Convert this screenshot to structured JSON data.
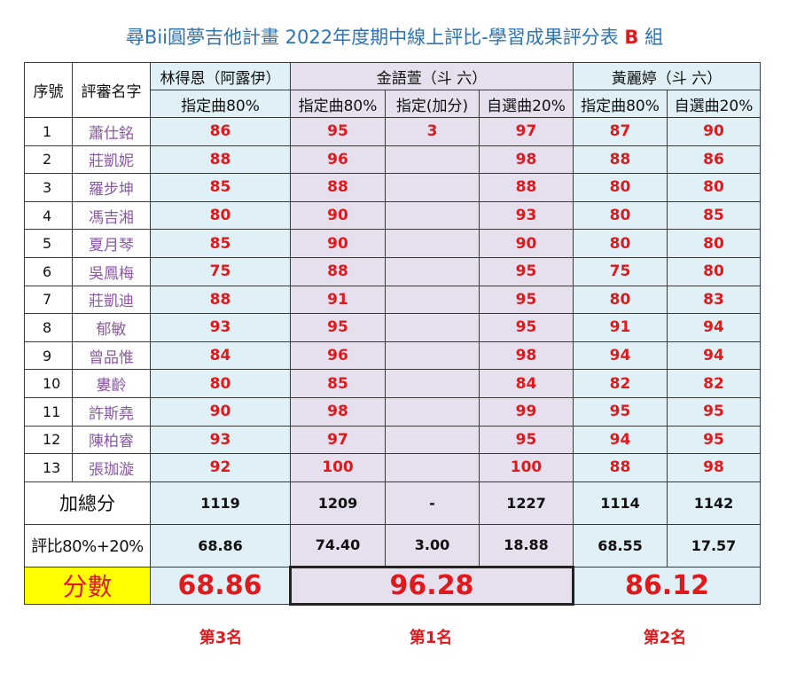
{
  "title": {
    "prefix": "尋Bii圓夢吉他計畫  2022年度期中線上評比-學習成果評分表 ",
    "group": "B",
    "suffix": " 組"
  },
  "headers": {
    "index": "序號",
    "judge": "評審名字",
    "p1_name": "林得恩（阿露伊）",
    "p2_name": "金語萱（斗 六）",
    "p3_name": "黃麗婷（斗 六）",
    "p1_cols": [
      "指定曲80%"
    ],
    "p2_cols": [
      "指定曲80%",
      "指定(加分)",
      "自選曲20%"
    ],
    "p3_cols": [
      "指定曲80%",
      "自選曲20%"
    ]
  },
  "rows": [
    {
      "idx": "1",
      "judge": "蕭仕銘",
      "scores": [
        "86",
        "95",
        "3",
        "97",
        "87",
        "90"
      ]
    },
    {
      "idx": "2",
      "judge": "莊凱妮",
      "scores": [
        "88",
        "96",
        "",
        "98",
        "88",
        "86"
      ]
    },
    {
      "idx": "3",
      "judge": "羅步坤",
      "scores": [
        "85",
        "88",
        "",
        "88",
        "80",
        "80"
      ]
    },
    {
      "idx": "4",
      "judge": "馮吉湘",
      "scores": [
        "80",
        "90",
        "",
        "93",
        "80",
        "85"
      ]
    },
    {
      "idx": "5",
      "judge": "夏月琴",
      "scores": [
        "85",
        "90",
        "",
        "90",
        "80",
        "80"
      ]
    },
    {
      "idx": "6",
      "judge": "吳鳳梅",
      "scores": [
        "75",
        "88",
        "",
        "95",
        "75",
        "80"
      ]
    },
    {
      "idx": "7",
      "judge": "莊凱迪",
      "scores": [
        "88",
        "91",
        "",
        "95",
        "80",
        "83"
      ]
    },
    {
      "idx": "8",
      "judge": "郁敏",
      "scores": [
        "93",
        "95",
        "",
        "95",
        "91",
        "94"
      ]
    },
    {
      "idx": "9",
      "judge": "曾品惟",
      "scores": [
        "84",
        "96",
        "",
        "98",
        "94",
        "94"
      ]
    },
    {
      "idx": "10",
      "judge": "婁齡",
      "scores": [
        "80",
        "85",
        "",
        "84",
        "82",
        "82"
      ]
    },
    {
      "idx": "11",
      "judge": "許斯堯",
      "scores": [
        "90",
        "98",
        "",
        "99",
        "95",
        "95"
      ]
    },
    {
      "idx": "12",
      "judge": "陳柏睿",
      "scores": [
        "93",
        "97",
        "",
        "95",
        "94",
        "95"
      ]
    },
    {
      "idx": "13",
      "judge": "張珈漩",
      "scores": [
        "92",
        "100",
        "",
        "100",
        "88",
        "98"
      ]
    }
  ],
  "totals": {
    "label": "加總分",
    "values": [
      "1119",
      "1209",
      "-",
      "1227",
      "1114",
      "1142"
    ]
  },
  "ratio": {
    "label": "評比80%+20%",
    "values": [
      "68.86",
      "74.40",
      "3.00",
      "18.88",
      "68.55",
      "17.57"
    ]
  },
  "final": {
    "label": "分數",
    "values": [
      "68.86",
      "96.28",
      "86.12"
    ]
  },
  "ranks": [
    "第3名",
    "第1名",
    "第2名"
  ]
}
